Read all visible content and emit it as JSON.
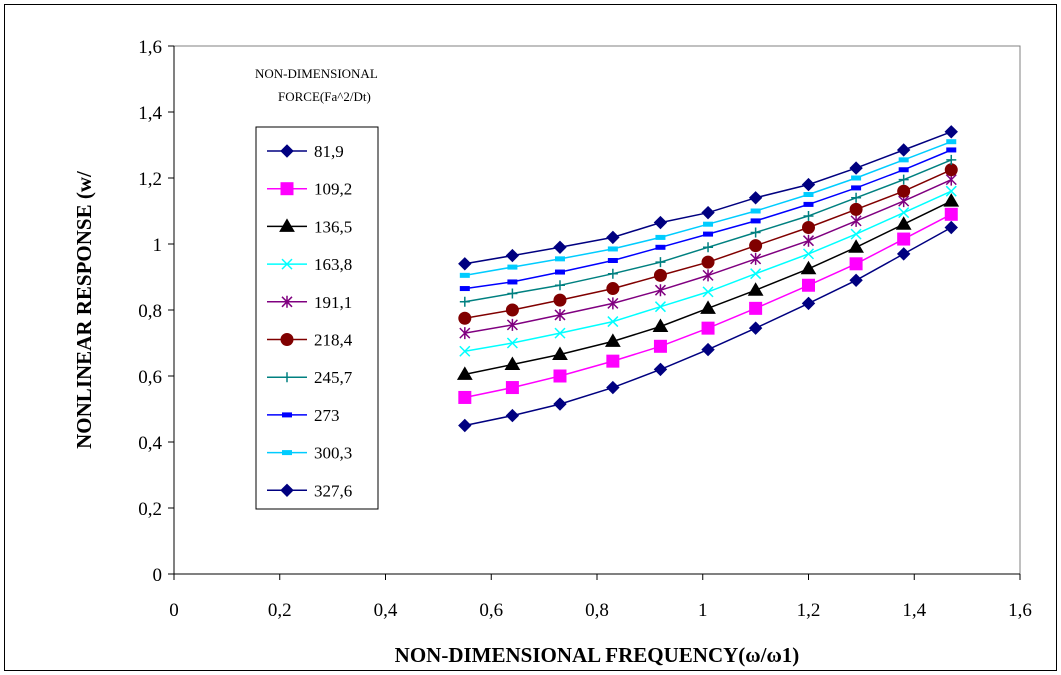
{
  "chart_data": {
    "type": "line",
    "title": "",
    "xlabel": "NON-DIMENSIONAL FREQUENCY(ω/ω1)",
    "ylabel": "NONLINEAR RESPONSE (w/",
    "xlim": [
      0,
      1.6
    ],
    "ylim": [
      0,
      1.6
    ],
    "xticks": [
      "0",
      "0,2",
      "0,4",
      "0,6",
      "0,8",
      "1",
      "1,2",
      "1,4",
      "1,6"
    ],
    "yticks": [
      "0",
      "0,2",
      "0,4",
      "0,6",
      "0,8",
      "1",
      "1,2",
      "1,4",
      "1,6"
    ],
    "grid": false,
    "legend_position": "left",
    "legend_title_lines": [
      "NON-DIMENSIONAL",
      "FORCE(Fa^2/Dt)"
    ],
    "x": [
      0.55,
      0.64,
      0.73,
      0.83,
      0.92,
      1.01,
      1.1,
      1.2,
      1.29,
      1.38,
      1.47
    ],
    "series": [
      {
        "name": "81,9",
        "color": "#000080",
        "marker": "diamond",
        "values": [
          0.45,
          0.48,
          0.515,
          0.565,
          0.62,
          0.68,
          0.745,
          0.82,
          0.89,
          0.97,
          1.05
        ]
      },
      {
        "name": "109,2",
        "color": "#FF00FF",
        "marker": "square",
        "values": [
          0.535,
          0.565,
          0.6,
          0.645,
          0.69,
          0.745,
          0.805,
          0.875,
          0.94,
          1.015,
          1.09
        ]
      },
      {
        "name": "136,5",
        "color": "#000000",
        "marker": "triangle",
        "values": [
          0.605,
          0.635,
          0.665,
          0.705,
          0.75,
          0.805,
          0.86,
          0.925,
          0.99,
          1.06,
          1.13
        ]
      },
      {
        "name": "163,8",
        "color": "#00FFFF",
        "marker": "x",
        "values": [
          0.675,
          0.7,
          0.73,
          0.765,
          0.81,
          0.855,
          0.91,
          0.97,
          1.03,
          1.095,
          1.16
        ]
      },
      {
        "name": "191,1",
        "color": "#800080",
        "marker": "star",
        "values": [
          0.73,
          0.755,
          0.785,
          0.82,
          0.86,
          0.905,
          0.955,
          1.01,
          1.07,
          1.13,
          1.195
        ]
      },
      {
        "name": "218,4",
        "color": "#800000",
        "marker": "circle",
        "values": [
          0.775,
          0.8,
          0.83,
          0.865,
          0.905,
          0.945,
          0.995,
          1.05,
          1.105,
          1.16,
          1.225
        ]
      },
      {
        "name": "245,7",
        "color": "#008080",
        "marker": "plus",
        "values": [
          0.825,
          0.85,
          0.875,
          0.91,
          0.945,
          0.99,
          1.035,
          1.085,
          1.14,
          1.195,
          1.255
        ]
      },
      {
        "name": "273",
        "color": "#0000FF",
        "marker": "dash",
        "values": [
          0.865,
          0.885,
          0.915,
          0.95,
          0.99,
          1.03,
          1.07,
          1.12,
          1.17,
          1.225,
          1.285
        ]
      },
      {
        "name": "300,3",
        "color": "#00CCFF",
        "marker": "dash",
        "values": [
          0.905,
          0.93,
          0.955,
          0.985,
          1.02,
          1.06,
          1.1,
          1.15,
          1.2,
          1.255,
          1.31
        ]
      },
      {
        "name": "327,6",
        "color": "#000080",
        "marker": "diamond",
        "values": [
          0.94,
          0.965,
          0.99,
          1.02,
          1.065,
          1.095,
          1.14,
          1.18,
          1.23,
          1.285,
          1.34
        ]
      }
    ]
  }
}
